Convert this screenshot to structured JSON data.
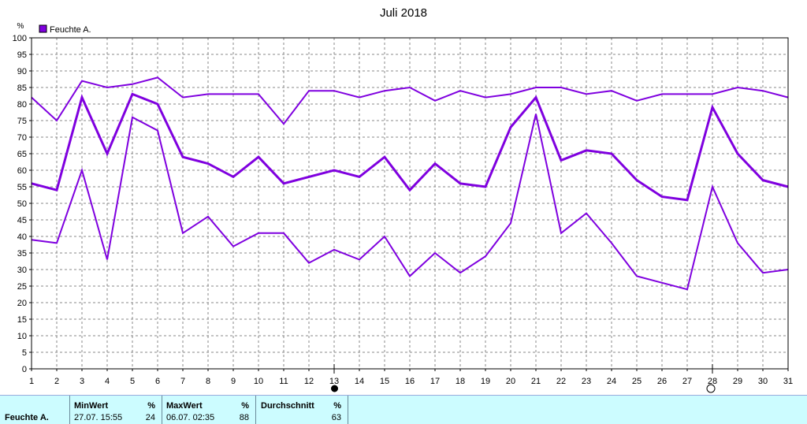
{
  "chart_data": {
    "type": "line",
    "title": "Juli 2018",
    "ylabel": "%",
    "ylim": [
      0,
      100
    ],
    "yticks": [
      0,
      5,
      10,
      15,
      20,
      25,
      30,
      35,
      40,
      45,
      50,
      55,
      60,
      65,
      70,
      75,
      80,
      85,
      90,
      95,
      100
    ],
    "x": [
      1,
      2,
      3,
      4,
      5,
      6,
      7,
      8,
      9,
      10,
      11,
      12,
      13,
      14,
      15,
      16,
      17,
      18,
      19,
      20,
      21,
      22,
      23,
      24,
      25,
      26,
      27,
      28,
      29,
      30,
      31
    ],
    "legend": {
      "label": "Feuchte A.",
      "position": "top-left"
    },
    "series": [
      {
        "name": "Feuchte A.",
        "style": "max",
        "values": [
          82,
          75,
          87,
          85,
          86,
          88,
          82,
          83,
          83,
          83,
          74,
          84,
          84,
          82,
          84,
          85,
          81,
          84,
          82,
          83,
          85,
          85,
          83,
          84,
          81,
          83,
          83,
          83,
          85,
          84,
          82
        ]
      },
      {
        "name": "Feuchte A.",
        "style": "avg",
        "values": [
          56,
          54,
          82,
          65,
          83,
          80,
          64,
          62,
          58,
          64,
          56,
          58,
          60,
          58,
          64,
          54,
          62,
          56,
          55,
          73,
          82,
          63,
          66,
          65,
          57,
          52,
          51,
          79,
          65,
          57,
          55
        ]
      },
      {
        "name": "Feuchte A.",
        "style": "min",
        "values": [
          39,
          38,
          60,
          33,
          76,
          72,
          41,
          46,
          37,
          41,
          41,
          32,
          36,
          33,
          40,
          28,
          35,
          29,
          34,
          44,
          77,
          41,
          47,
          38,
          28,
          26,
          24,
          55,
          38,
          29,
          30
        ]
      }
    ],
    "markers": [
      {
        "day": 13,
        "symbol": "full-moon"
      },
      {
        "day": 28,
        "symbol": "new-moon"
      }
    ],
    "grid": true,
    "color": "#7f00df"
  },
  "stats": {
    "row_label": "Feuchte A.",
    "min": {
      "header": "MinWert",
      "unit": "%",
      "when": "27.07.  15:55",
      "value": "24"
    },
    "max": {
      "header": "MaxWert",
      "unit": "%",
      "when": "06.07.  02:35",
      "value": "88"
    },
    "avg": {
      "header": "Durchschnitt",
      "unit": "%",
      "value": "63"
    }
  }
}
